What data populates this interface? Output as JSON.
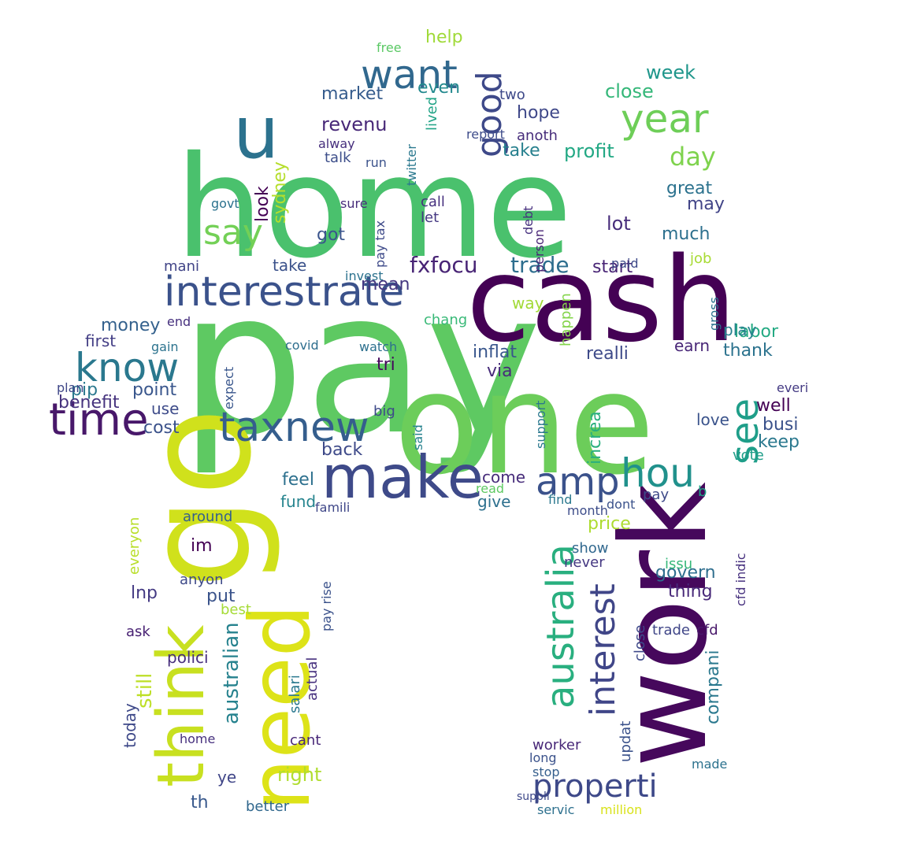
{
  "words": [
    {
      "text": "pay",
      "color": "#5ec962",
      "rotate": false
    },
    {
      "text": "home",
      "color": "#4ac16d",
      "rotate": false
    },
    {
      "text": "one",
      "color": "#6ccd5a",
      "rotate": false
    },
    {
      "text": "cash",
      "color": "#440154",
      "rotate": false
    },
    {
      "text": "go",
      "color": "#d0e11c",
      "rotate": true
    },
    {
      "text": "work",
      "color": "#46085c",
      "rotate": true
    },
    {
      "text": "need",
      "color": "#dde318",
      "rotate": true
    },
    {
      "text": "make",
      "color": "#3e4a89",
      "rotate": false
    },
    {
      "text": "taxnew",
      "color": "#355e8d",
      "rotate": false
    },
    {
      "text": "interestrate",
      "color": "#3b528b",
      "rotate": false
    },
    {
      "text": "think",
      "color": "#c8e020",
      "rotate": true
    },
    {
      "text": "know",
      "color": "#2a788e",
      "rotate": false
    },
    {
      "text": "time",
      "color": "#48186a",
      "rotate": false
    },
    {
      "text": "amp",
      "color": "#3b528b",
      "rotate": false
    },
    {
      "text": "hou",
      "color": "#21918c",
      "rotate": false
    },
    {
      "text": "see",
      "color": "#1f9e89",
      "rotate": true
    },
    {
      "text": "year",
      "color": "#6ece58",
      "rotate": false
    },
    {
      "text": "want",
      "color": "#31688e",
      "rotate": false
    },
    {
      "text": "u",
      "color": "#2c728e",
      "rotate": false
    },
    {
      "text": "say",
      "color": "#73d056",
      "rotate": false
    },
    {
      "text": "good",
      "color": "#3e4989",
      "rotate": true
    },
    {
      "text": "australia",
      "color": "#29af7f",
      "rotate": true
    },
    {
      "text": "interest",
      "color": "#404688",
      "rotate": true
    },
    {
      "text": "properti",
      "color": "#3e4989",
      "rotate": false
    },
    {
      "text": "trade",
      "color": "#2e6e8e",
      "rotate": false
    },
    {
      "text": "fxfocu",
      "color": "#482475",
      "rotate": false
    },
    {
      "text": "australian",
      "color": "#26828e",
      "rotate": true
    },
    {
      "text": "day",
      "color": "#7fd34e",
      "rotate": false
    },
    {
      "text": "week",
      "color": "#1f968b",
      "rotate": false
    },
    {
      "text": "close",
      "color": "#35b779",
      "rotate": false
    },
    {
      "text": "lot",
      "color": "#472d7b",
      "rotate": false
    },
    {
      "text": "great",
      "color": "#2c728e",
      "rotate": false
    },
    {
      "text": "may",
      "color": "#414487",
      "rotate": false
    },
    {
      "text": "much",
      "color": "#2d708e",
      "rotate": false
    },
    {
      "text": "revenu",
      "color": "#482878",
      "rotate": false
    },
    {
      "text": "market",
      "color": "#365c8d",
      "rotate": false
    },
    {
      "text": "hope",
      "color": "#3f4889",
      "rotate": false
    },
    {
      "text": "help",
      "color": "#a0da39",
      "rotate": false
    },
    {
      "text": "even",
      "color": "#23898e",
      "rotate": false
    },
    {
      "text": "profit",
      "color": "#22a884",
      "rotate": false
    },
    {
      "text": "take",
      "color": "#27808e",
      "rotate": false
    },
    {
      "text": "sydney",
      "color": "#b5de2b",
      "rotate": true
    },
    {
      "text": "look",
      "color": "#440154",
      "rotate": true
    },
    {
      "text": "got",
      "color": "#3a548c",
      "rotate": false
    },
    {
      "text": "mean",
      "color": "#453781",
      "rotate": false
    },
    {
      "text": "start",
      "color": "#482475",
      "rotate": false
    },
    {
      "text": "money",
      "color": "#34618d",
      "rotate": false
    },
    {
      "text": "first",
      "color": "#433e85",
      "rotate": false
    },
    {
      "text": "benefit",
      "color": "#46337e",
      "rotate": false
    },
    {
      "text": "pip",
      "color": "#2a788e",
      "rotate": false
    },
    {
      "text": "point",
      "color": "#39568c",
      "rotate": false
    },
    {
      "text": "use",
      "color": "#3e4c8a",
      "rotate": false
    },
    {
      "text": "cost",
      "color": "#3b528b",
      "rotate": false
    },
    {
      "text": "back",
      "color": "#3e4a89",
      "rotate": false
    },
    {
      "text": "come",
      "color": "#472c7a",
      "rotate": false
    },
    {
      "text": "give",
      "color": "#2d708e",
      "rotate": false
    },
    {
      "text": "price",
      "color": "#addc30",
      "rotate": false
    },
    {
      "text": "show",
      "color": "#31688e",
      "rotate": false
    },
    {
      "text": "never",
      "color": "#453882",
      "rotate": false
    },
    {
      "text": "thing",
      "color": "#482979",
      "rotate": false
    },
    {
      "text": "govern",
      "color": "#2e6e8e",
      "rotate": false
    },
    {
      "text": "put",
      "color": "#3a538b",
      "rotate": false
    },
    {
      "text": "lnp",
      "color": "#443a83",
      "rotate": false
    },
    {
      "text": "im",
      "color": "#440154",
      "rotate": false
    },
    {
      "text": "around",
      "color": "#34618d",
      "rotate": false
    },
    {
      "text": "feel",
      "color": "#2d708e",
      "rotate": false
    },
    {
      "text": "fund",
      "color": "#25848e",
      "rotate": false
    },
    {
      "text": "right",
      "color": "#b0dd2f",
      "rotate": false
    },
    {
      "text": "ye",
      "color": "#404688",
      "rotate": false
    },
    {
      "text": "th",
      "color": "#38588c",
      "rotate": false
    },
    {
      "text": "still",
      "color": "#bddf26",
      "rotate": true
    },
    {
      "text": "today",
      "color": "#3e4989",
      "rotate": true
    },
    {
      "text": "polici",
      "color": "#472f7d",
      "rotate": false
    },
    {
      "text": "ask",
      "color": "#482173",
      "rotate": false
    },
    {
      "text": "best",
      "color": "#a5db36",
      "rotate": false
    },
    {
      "text": "cant",
      "color": "#482878",
      "rotate": false
    },
    {
      "text": "home",
      "color": "#46307e",
      "rotate": false
    },
    {
      "text": "better",
      "color": "#31688e",
      "rotate": false
    },
    {
      "text": "busi",
      "color": "#3b528b",
      "rotate": false
    },
    {
      "text": "well",
      "color": "#440154",
      "rotate": false
    },
    {
      "text": "keep",
      "color": "#2a788e",
      "rotate": false
    },
    {
      "text": "vote",
      "color": "#1f9e89",
      "rotate": false
    },
    {
      "text": "labor",
      "color": "#24aa83",
      "rotate": false
    },
    {
      "text": "thank",
      "color": "#2c738e",
      "rotate": false
    },
    {
      "text": "earn",
      "color": "#482677",
      "rotate": false
    },
    {
      "text": "play",
      "color": "#26828e",
      "rotate": false
    },
    {
      "text": "realli",
      "color": "#3e4a89",
      "rotate": false
    },
    {
      "text": "inflat",
      "color": "#39568c",
      "rotate": false
    },
    {
      "text": "via",
      "color": "#472c7a",
      "rotate": false
    },
    {
      "text": "tri",
      "color": "#46085c",
      "rotate": false
    },
    {
      "text": "big",
      "color": "#3e4a89",
      "rotate": false
    },
    {
      "text": "way",
      "color": "#a2da37",
      "rotate": false
    },
    {
      "text": "job",
      "color": "#a8db34",
      "rotate": false
    },
    {
      "text": "made",
      "color": "#2c728e",
      "rotate": false
    },
    {
      "text": "long",
      "color": "#3b528b",
      "rotate": false
    },
    {
      "text": "stop",
      "color": "#355f8d",
      "rotate": false
    },
    {
      "text": "suppli",
      "color": "#3e4989",
      "rotate": false
    },
    {
      "text": "servic",
      "color": "#2d708e",
      "rotate": false
    },
    {
      "text": "million",
      "color": "#d8e219",
      "rotate": false
    },
    {
      "text": "trade",
      "color": "#404688",
      "rotate": false
    },
    {
      "text": "cfd",
      "color": "#48186a",
      "rotate": false
    },
    {
      "text": "month",
      "color": "#3d4d8a",
      "rotate": false
    },
    {
      "text": "find",
      "color": "#2a788e",
      "rotate": false
    },
    {
      "text": "dont",
      "color": "#3b528b",
      "rotate": false
    },
    {
      "text": "pay",
      "color": "#3e4a89",
      "rotate": false
    },
    {
      "text": "talk",
      "color": "#3d4e8a",
      "rotate": false
    },
    {
      "text": "alway",
      "color": "#472f7d",
      "rotate": false
    },
    {
      "text": "run",
      "color": "#3b528b",
      "rotate": false
    },
    {
      "text": "call",
      "color": "#46307e",
      "rotate": false
    },
    {
      "text": "let",
      "color": "#453882",
      "rotate": false
    },
    {
      "text": "sure",
      "color": "#472d7b",
      "rotate": false
    },
    {
      "text": "report",
      "color": "#3e4c8a",
      "rotate": false
    },
    {
      "text": "anoth",
      "color": "#472d7b",
      "rotate": false
    },
    {
      "text": "twitter",
      "color": "#2a788e",
      "rotate": true
    },
    {
      "text": "lived",
      "color": "#20a386",
      "rotate": true
    },
    {
      "text": "invest",
      "color": "#2c728e",
      "rotate": false
    },
    {
      "text": "chang",
      "color": "#38b977",
      "rotate": false
    },
    {
      "text": "watch",
      "color": "#2d708e",
      "rotate": false
    },
    {
      "text": "said",
      "color": "#26828e",
      "rotate": true
    },
    {
      "text": "covid",
      "color": "#2e6e8e",
      "rotate": false
    },
    {
      "text": "expect",
      "color": "#39568c",
      "rotate": true
    },
    {
      "text": "plan",
      "color": "#3f4788",
      "rotate": false
    },
    {
      "text": "gain",
      "color": "#2c738e",
      "rotate": false
    },
    {
      "text": "end",
      "color": "#46307e",
      "rotate": false
    },
    {
      "text": "mani",
      "color": "#414487",
      "rotate": false
    },
    {
      "text": "take",
      "color": "#3b528b",
      "rotate": false
    },
    {
      "text": "govt",
      "color": "#2c728e",
      "rotate": false
    },
    {
      "text": "two",
      "color": "#3e4989",
      "rotate": false
    },
    {
      "text": "free",
      "color": "#5ac864",
      "rotate": false
    },
    {
      "text": "everyon",
      "color": "#b8de29",
      "rotate": true
    },
    {
      "text": "anyon",
      "color": "#3e4a89",
      "rotate": false
    },
    {
      "text": "salari",
      "color": "#2a788e",
      "rotate": true
    },
    {
      "text": "actual",
      "color": "#46307e",
      "rotate": true
    },
    {
      "text": "pay rise",
      "color": "#3b528b",
      "rotate": true
    },
    {
      "text": "famili",
      "color": "#3f4788",
      "rotate": false
    },
    {
      "text": "read",
      "color": "#5ec962",
      "rotate": false
    },
    {
      "text": "paid",
      "color": "#3e4a89",
      "rotate": false
    },
    {
      "text": "happen",
      "color": "#84d44b",
      "rotate": true
    },
    {
      "text": "increa",
      "color": "#29af7f",
      "rotate": true
    },
    {
      "text": "support",
      "color": "#2a788e",
      "rotate": true
    },
    {
      "text": "updat",
      "color": "#3b528b",
      "rotate": true
    },
    {
      "text": "close",
      "color": "#3e4989",
      "rotate": true
    },
    {
      "text": "cfd indic",
      "color": "#46307e",
      "rotate": true
    },
    {
      "text": "gross",
      "color": "#2c728e",
      "rotate": true
    },
    {
      "text": "realli",
      "color": "#3e4a89",
      "rotate": false
    },
    {
      "text": "compani",
      "color": "#2a788e",
      "rotate": true
    },
    {
      "text": "worker",
      "color": "#482878",
      "rotate": false
    },
    {
      "text": "issu",
      "color": "#35b779",
      "rotate": false
    },
    {
      "text": "b",
      "color": "#20a386",
      "rotate": false
    },
    {
      "text": "everi",
      "color": "#443a83",
      "rotate": false
    },
    {
      "text": "love",
      "color": "#3a538b",
      "rotate": false
    },
    {
      "text": "person",
      "color": "#482475",
      "rotate": true
    },
    {
      "text": "debt",
      "color": "#46307e",
      "rotate": true
    },
    {
      "text": "pay tax",
      "color": "#3e4a89",
      "rotate": true
    }
  ]
}
